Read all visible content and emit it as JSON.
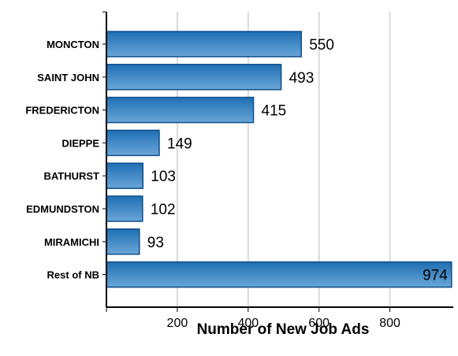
{
  "chart_data": {
    "type": "bar",
    "orientation": "horizontal",
    "categories": [
      "MONCTON",
      "SAINT JOHN",
      "FREDERICTON",
      "DIEPPE",
      "BATHURST",
      "EDMUNDSTON",
      "MIRAMICHI",
      "Rest of NB"
    ],
    "values": [
      550,
      493,
      415,
      149,
      103,
      102,
      93,
      974
    ],
    "xlabel": "Number of New Job Ads",
    "ylabel": "",
    "xlim": [
      0,
      980
    ],
    "xticks": [
      200,
      400,
      600,
      800
    ],
    "grid": true,
    "legend": "none",
    "bar_color": "#1f6fb2",
    "bar_color_light": "#6aa6d8",
    "bar_border": "#0d4f8c",
    "grid_color": "#d9d9d9"
  }
}
